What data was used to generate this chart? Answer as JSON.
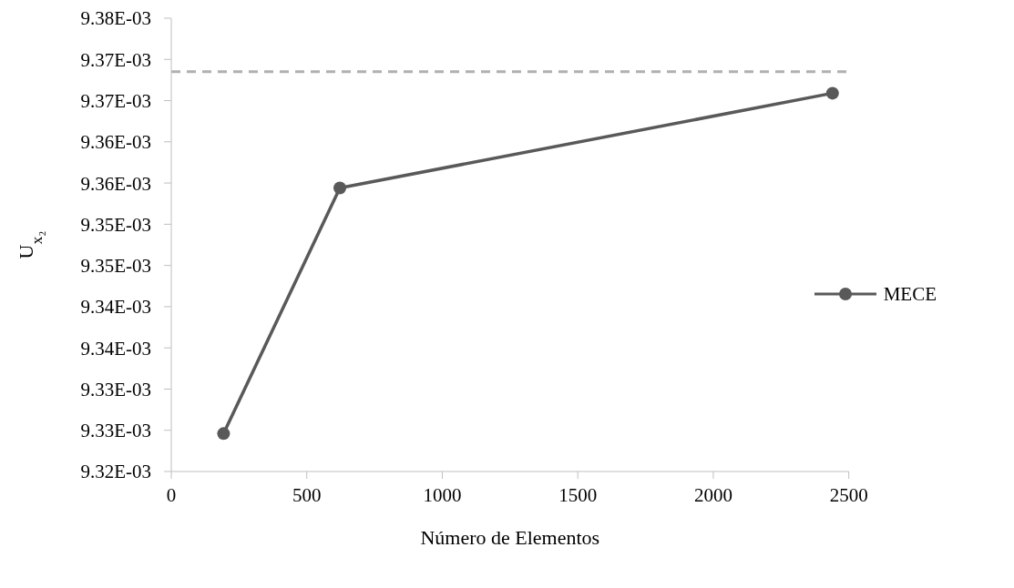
{
  "chart_data": {
    "type": "line",
    "xlabel": "Número de Elementos",
    "ylabel": "U$_{x₂}$",
    "series": [
      {
        "name": "MECE",
        "color": "#595959",
        "x": [
          193,
          622,
          2440
        ],
        "values": [
          0.0093246,
          0.0093544,
          0.0093659
        ]
      }
    ],
    "ref_lines": [
      {
        "axis": "y",
        "value": 0.0093685,
        "color": "#b0b0b0",
        "line_style": "dashed"
      }
    ],
    "xlim": [
      0,
      2500
    ],
    "xticks": [
      0,
      500,
      1000,
      1500,
      2000,
      2500
    ],
    "ylim": [
      0.00932,
      0.009375
    ],
    "yticks": [
      {
        "value": 0.00932,
        "label": "9.32E-03"
      },
      {
        "value": 0.009325,
        "label": "9.33E-03"
      },
      {
        "value": 0.00933,
        "label": "9.33E-03"
      },
      {
        "value": 0.009335,
        "label": "9.34E-03"
      },
      {
        "value": 0.00934,
        "label": "9.34E-03"
      },
      {
        "value": 0.009345,
        "label": "9.35E-03"
      },
      {
        "value": 0.00935,
        "label": "9.35E-03"
      },
      {
        "value": 0.009355,
        "label": "9.36E-03"
      },
      {
        "value": 0.00936,
        "label": "9.36E-03"
      },
      {
        "value": 0.009365,
        "label": "9.37E-03"
      },
      {
        "value": 0.00937,
        "label": "9.37E-03"
      },
      {
        "value": 0.009375,
        "label": "9.38E-03"
      }
    ],
    "grid": false,
    "legend": "right",
    "marker": "circle",
    "line_style": "solid"
  }
}
